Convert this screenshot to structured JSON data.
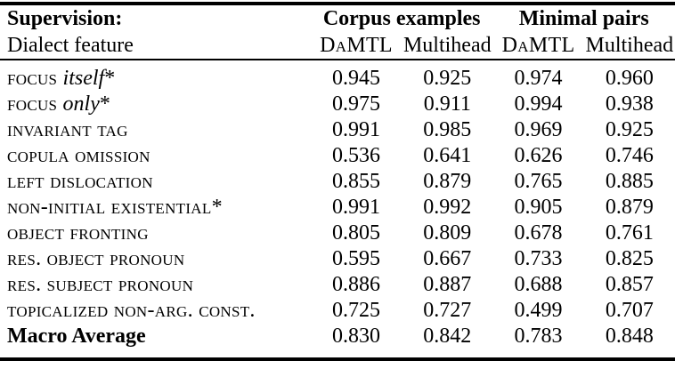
{
  "colors": {
    "text": "#000000",
    "background": "#ffffff",
    "rule": "#000000"
  },
  "header": {
    "supervision": "Supervision:",
    "dialect_feature": "Dialect feature",
    "groups": [
      {
        "label": "Corpus examples"
      },
      {
        "label": "Minimal pairs"
      }
    ],
    "subcolumns": [
      {
        "label": "DaMTL"
      },
      {
        "label": "Multihead"
      },
      {
        "label": "DaMTL"
      },
      {
        "label": "Multihead"
      }
    ]
  },
  "rows": [
    {
      "sc": "focus",
      "it": "itself",
      "star": "*",
      "values": [
        "0.945",
        "0.925",
        "0.974",
        "0.960"
      ]
    },
    {
      "sc": "focus",
      "it": "only",
      "star": "*",
      "values": [
        "0.975",
        "0.911",
        "0.994",
        "0.938"
      ]
    },
    {
      "sc": "invariant tag",
      "it": "",
      "star": "",
      "values": [
        "0.991",
        "0.985",
        "0.969",
        "0.925"
      ]
    },
    {
      "sc": "copula omission",
      "it": "",
      "star": "",
      "values": [
        "0.536",
        "0.641",
        "0.626",
        "0.746"
      ]
    },
    {
      "sc": "left dislocation",
      "it": "",
      "star": "",
      "values": [
        "0.855",
        "0.879",
        "0.765",
        "0.885"
      ]
    },
    {
      "sc": "non-initial existential",
      "it": "",
      "star": "*",
      "values": [
        "0.991",
        "0.992",
        "0.905",
        "0.879"
      ]
    },
    {
      "sc": "object fronting",
      "it": "",
      "star": "",
      "values": [
        "0.805",
        "0.809",
        "0.678",
        "0.761"
      ]
    },
    {
      "sc": "res. object pronoun",
      "it": "",
      "star": "",
      "values": [
        "0.595",
        "0.667",
        "0.733",
        "0.825"
      ]
    },
    {
      "sc": "res. subject pronoun",
      "it": "",
      "star": "",
      "values": [
        "0.886",
        "0.887",
        "0.688",
        "0.857"
      ]
    },
    {
      "sc": "topicalized non-arg. const.",
      "it": "",
      "star": "",
      "values": [
        "0.725",
        "0.727",
        "0.499",
        "0.707"
      ]
    }
  ],
  "macro": {
    "label": "Macro Average",
    "values": [
      "0.830",
      "0.842",
      "0.783",
      "0.848"
    ]
  }
}
